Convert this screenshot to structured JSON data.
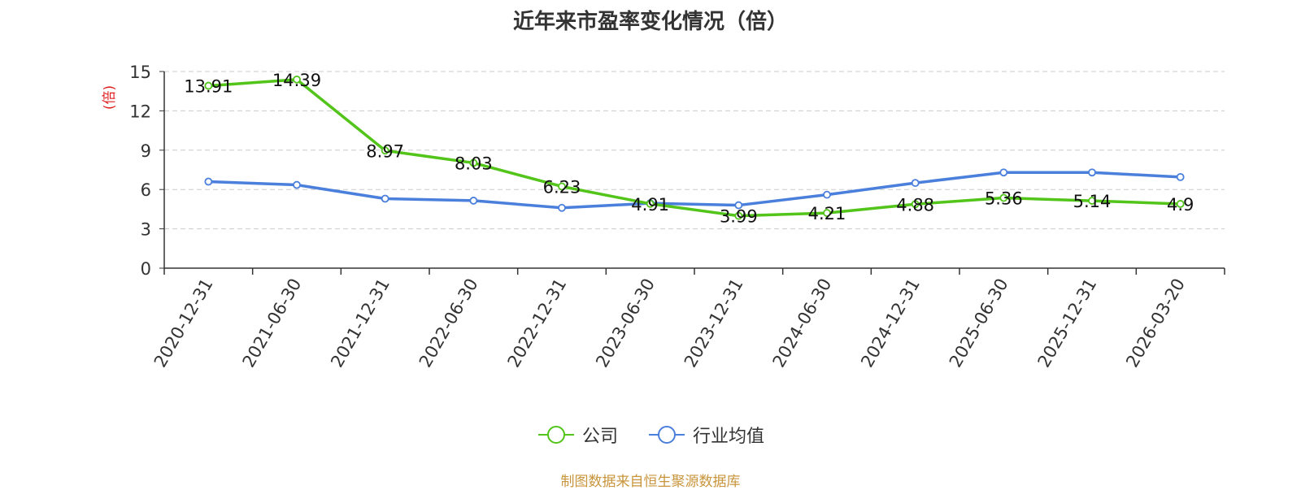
{
  "chart_data": {
    "type": "line",
    "title": "近年来市盈率变化情况（倍）",
    "ylabel": "(倍)",
    "xlabel": "",
    "ylim": [
      0,
      15
    ],
    "yticks": [
      0,
      3,
      6,
      9,
      12,
      15
    ],
    "grid": true,
    "legend_position": "bottom-center",
    "categories": [
      "2020-12-31",
      "2021-06-30",
      "2021-12-31",
      "2022-06-30",
      "2022-12-31",
      "2023-06-30",
      "2023-12-31",
      "2024-06-30",
      "2024-12-31",
      "2025-06-30",
      "2025-12-31",
      "2026-03-20"
    ],
    "series": [
      {
        "name": "公司",
        "color": "#52c41a",
        "values": [
          13.91,
          14.39,
          8.97,
          8.03,
          6.23,
          4.91,
          3.99,
          4.21,
          4.88,
          5.36,
          5.14,
          4.9
        ],
        "labels": [
          "13.91",
          "14.39",
          "8.97",
          "8.03",
          "6.23",
          "4.91",
          "3.99",
          "4.21",
          "4.88",
          "5.36",
          "5.14",
          "4.9"
        ]
      },
      {
        "name": "行业均值",
        "color": "#4a7fdc",
        "values": [
          6.6,
          6.35,
          5.3,
          5.15,
          4.6,
          4.95,
          4.8,
          5.6,
          6.5,
          7.3,
          7.3,
          6.95
        ]
      }
    ]
  },
  "footer": {
    "source": "制图数据来自恒生聚源数据库"
  }
}
